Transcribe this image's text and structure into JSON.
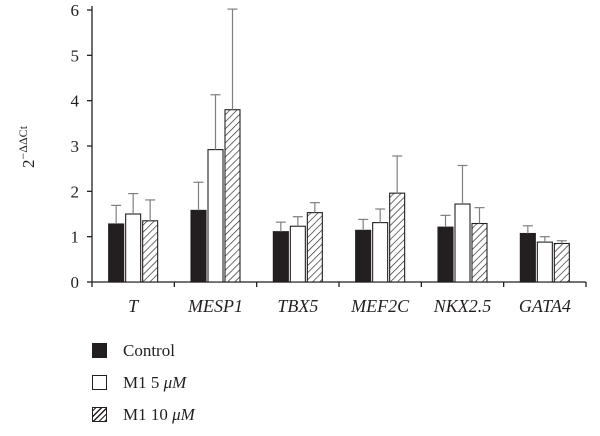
{
  "chart_data": {
    "type": "bar",
    "ylabel_base": "2",
    "ylabel_exp": "−ΔΔCt",
    "ylim": [
      0,
      6
    ],
    "yticks": [
      0,
      1,
      2,
      3,
      4,
      5,
      6
    ],
    "categories": [
      "T",
      "MESP1",
      "TBX5",
      "MEF2C",
      "NKX2.5",
      "GATA4"
    ],
    "series": [
      {
        "name": "Control",
        "fill": "solid",
        "color": "#231f20",
        "values": [
          1.28,
          1.58,
          1.11,
          1.14,
          1.21,
          1.07
        ],
        "errors": [
          0.41,
          0.62,
          0.21,
          0.24,
          0.26,
          0.17
        ]
      },
      {
        "name": "M1 5 μM",
        "fill": "open",
        "color": "#ffffff",
        "values": [
          1.5,
          2.92,
          1.23,
          1.31,
          1.72,
          0.88
        ],
        "errors": [
          0.45,
          1.21,
          0.21,
          0.3,
          0.85,
          0.12
        ]
      },
      {
        "name": "M1 10 μM",
        "fill": "hatched",
        "color": "#231f20",
        "values": [
          1.35,
          3.8,
          1.53,
          1.96,
          1.29,
          0.85
        ],
        "errors": [
          0.46,
          2.22,
          0.22,
          0.82,
          0.35,
          0.06
        ]
      }
    ],
    "legend_position": "bottom-left",
    "grid": false
  },
  "legend": {
    "control": {
      "name": "Control"
    },
    "m1_5": {
      "text": "M1 5 ",
      "unit": "μM"
    },
    "m1_10": {
      "text": "M1 10 ",
      "unit": "μM"
    }
  },
  "colors": {
    "ink": "#231f20",
    "errorbar": "#7f7f7f"
  }
}
